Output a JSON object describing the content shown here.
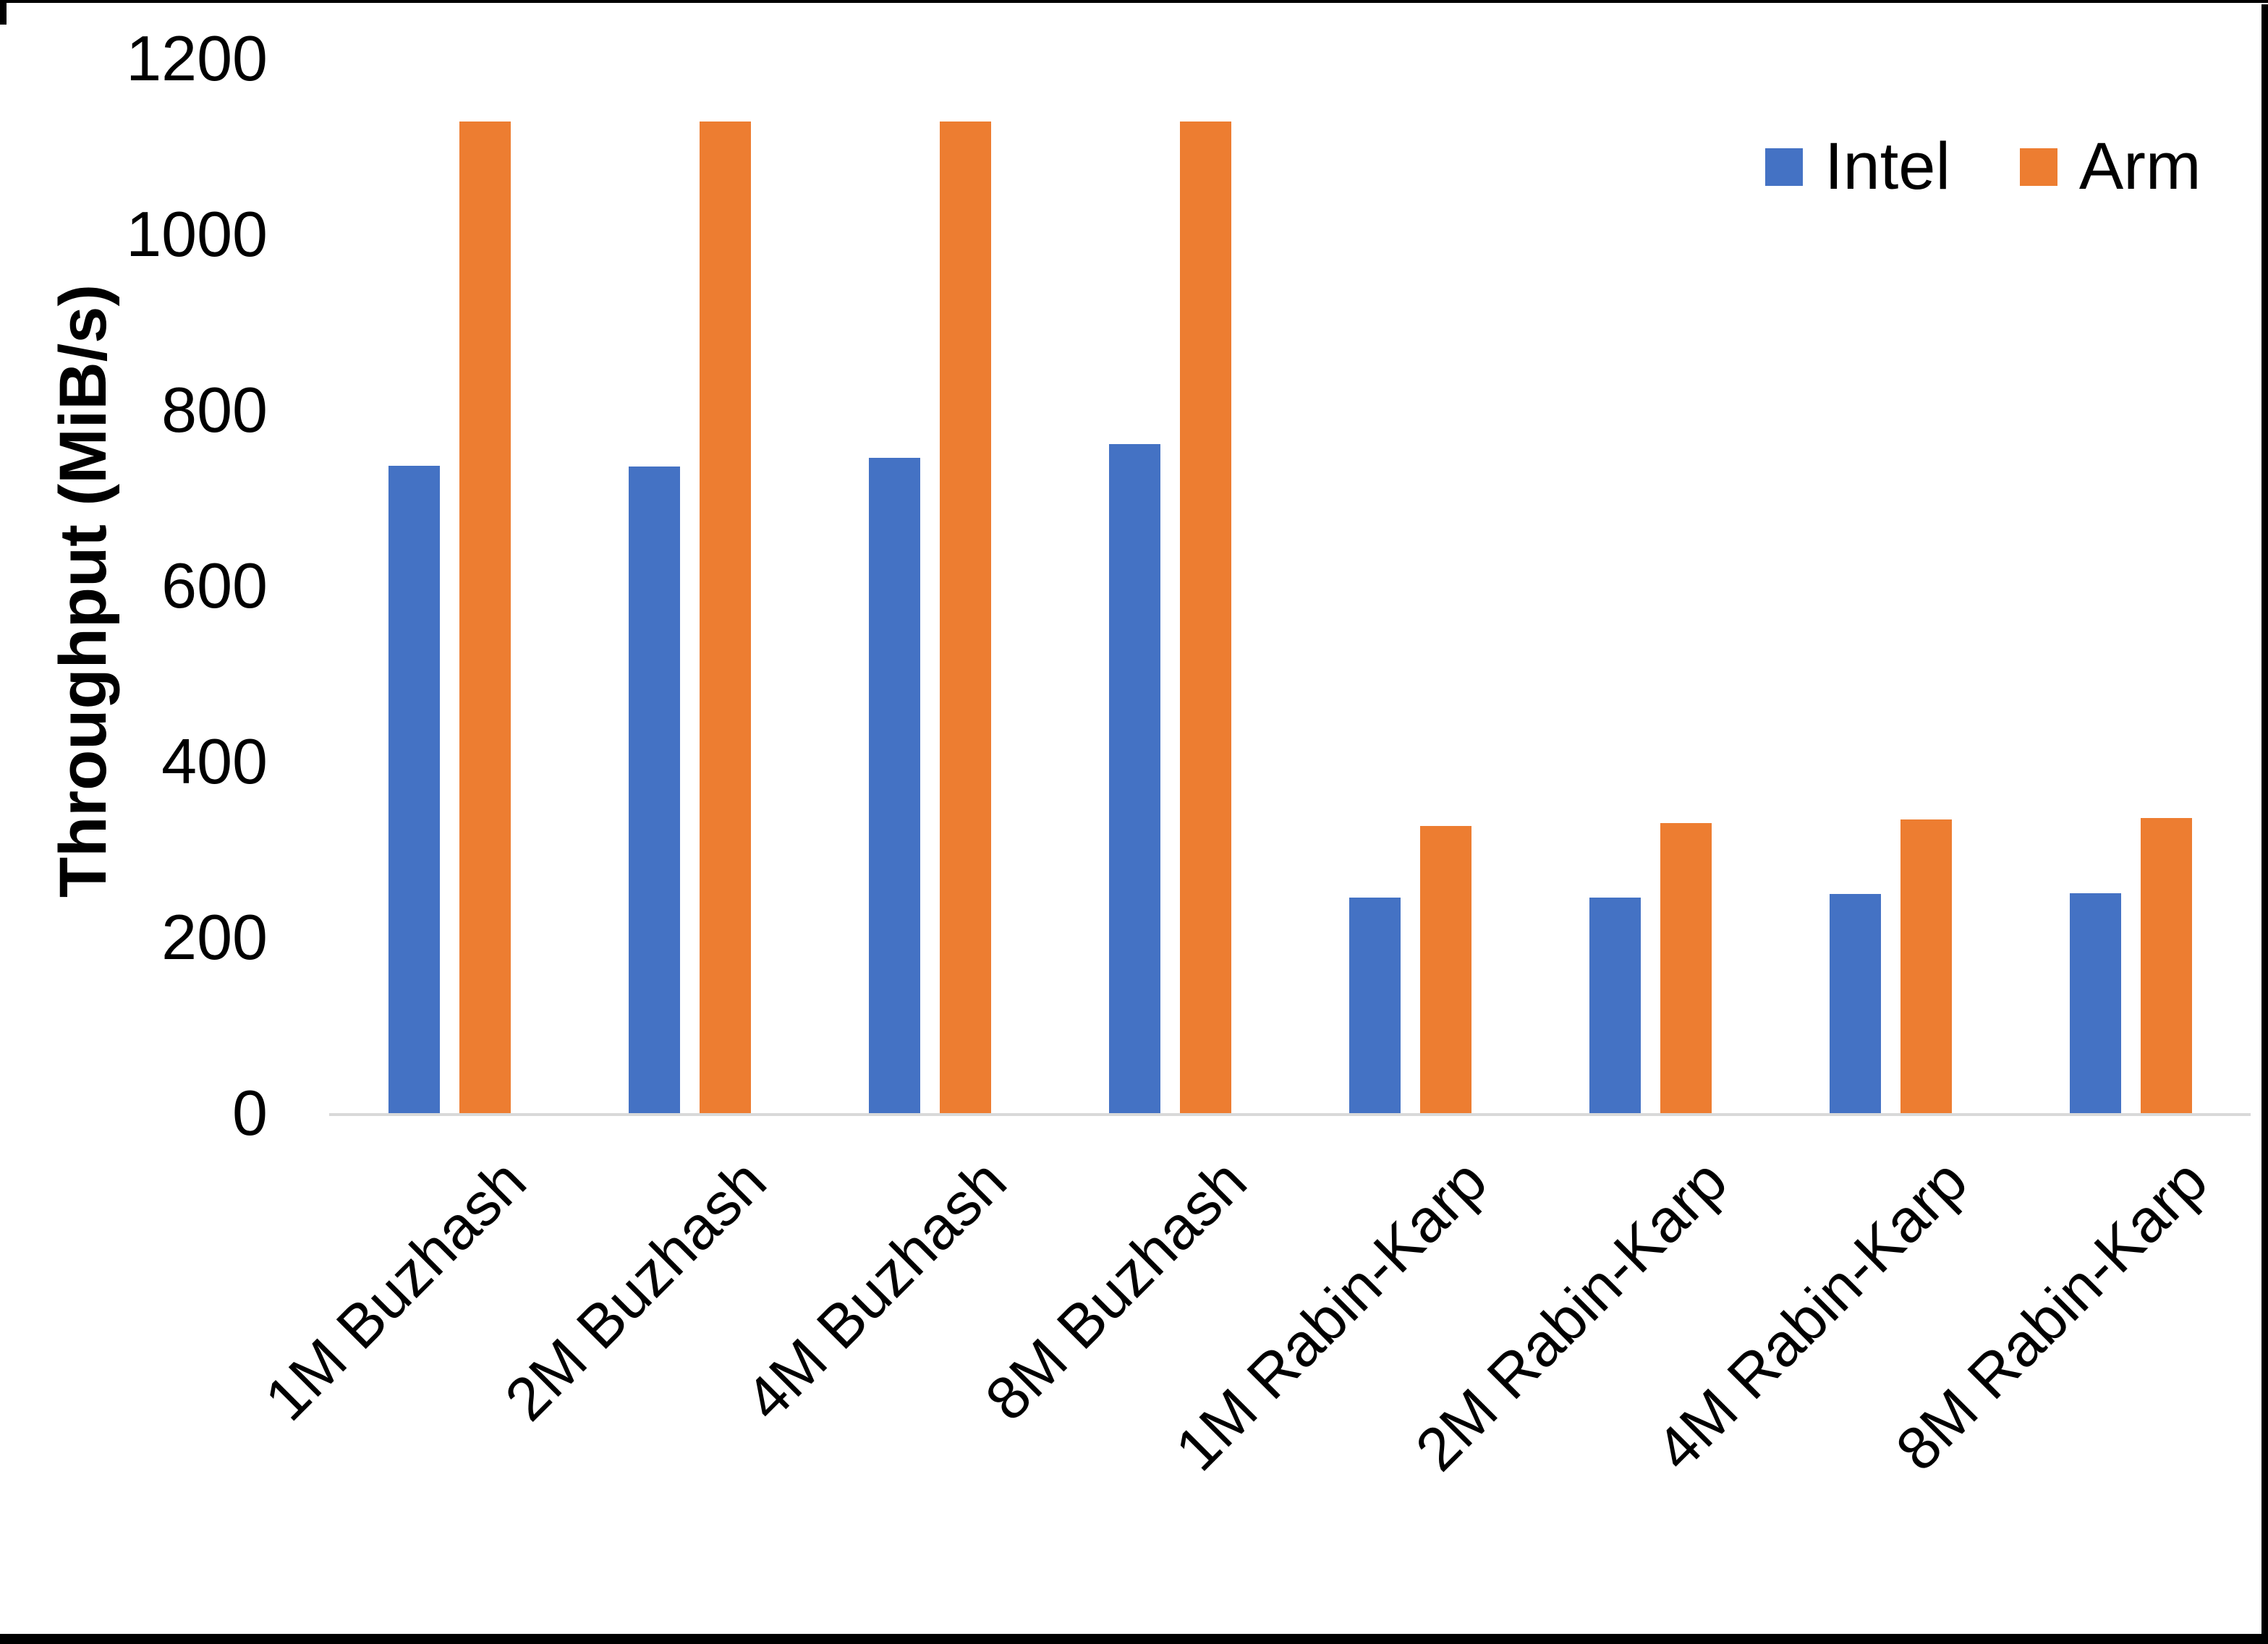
{
  "chart_data": {
    "type": "bar",
    "title": "",
    "xlabel": "",
    "ylabel": "Throughput (MiB/s)",
    "categories": [
      "1M Buzhash",
      "2M Buzhash",
      "4M Buzhash",
      "8M Buzhash",
      "1M Rabin-Karp",
      "2M Rabin-Karp",
      "4M Rabin-Karp",
      "8M Rabin-Karp"
    ],
    "series": [
      {
        "name": "Intel",
        "color": "#4472C4",
        "values": [
          737,
          736,
          746,
          761,
          245,
          245,
          249,
          250
        ]
      },
      {
        "name": "Arm",
        "color": "#ED7D31",
        "values": [
          1128,
          1128,
          1128,
          1128,
          327,
          330,
          334,
          336
        ]
      }
    ],
    "y_ticks": [
      0,
      200,
      400,
      600,
      800,
      1000,
      1200
    ],
    "ylim": [
      0,
      1200
    ],
    "grid": false,
    "legend_position": "top-right",
    "axis_line_color": "#D9D9D9",
    "text_color": "#000000"
  }
}
